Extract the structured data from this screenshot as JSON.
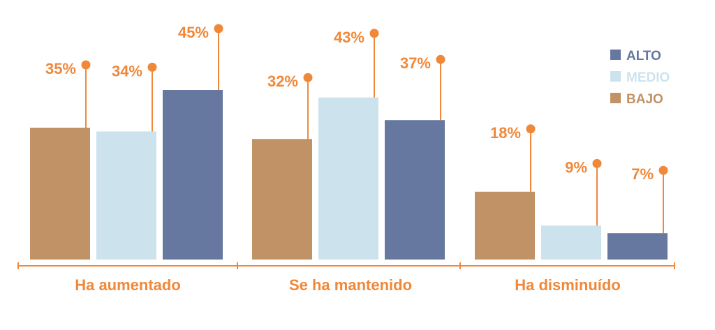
{
  "chart_data": {
    "type": "bar",
    "categories": [
      "Ha aumentado",
      "Se ha mantenido",
      "Ha disminuído"
    ],
    "series": [
      {
        "name": "BAJO",
        "values": [
          35,
          32,
          18
        ],
        "labels": [
          "35%",
          "32%",
          "18%"
        ]
      },
      {
        "name": "MEDIO",
        "values": [
          34,
          43,
          9
        ],
        "labels": [
          "34%",
          "43%",
          "9%"
        ]
      },
      {
        "name": "ALTO",
        "values": [
          45,
          37,
          7
        ],
        "labels": [
          "45%",
          "37%",
          "7%"
        ]
      }
    ],
    "legend": {
      "placement": "top-right",
      "order": [
        "ALTO",
        "MEDIO",
        "BAJO"
      ]
    },
    "ylim": [
      0,
      45
    ],
    "grid": false,
    "colors": {
      "BAJO": "#C09265",
      "MEDIO": "#CCE3EE",
      "ALTO": "#66789F",
      "accent": "#F0883A"
    }
  }
}
